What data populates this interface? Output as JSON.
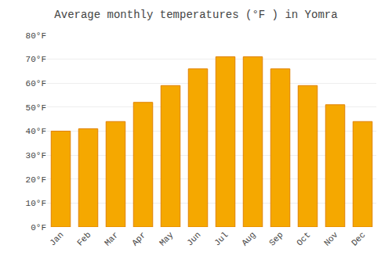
{
  "chart_data": {
    "type": "bar",
    "title": "Average monthly temperatures (°F ) in Yomra",
    "categories": [
      "Jan",
      "Feb",
      "Mar",
      "Apr",
      "May",
      "Jun",
      "Jul",
      "Aug",
      "Sep",
      "Oct",
      "Nov",
      "Dec"
    ],
    "values": [
      40,
      41,
      44,
      52,
      59,
      66,
      71,
      71,
      66,
      59,
      51,
      44
    ],
    "color": "#F5A800",
    "ylim": [
      0,
      80
    ],
    "yticks": [
      {
        "value": 0,
        "label": "0°F"
      },
      {
        "value": 10,
        "label": "10°F"
      },
      {
        "value": 20,
        "label": "20°F"
      },
      {
        "value": 30,
        "label": "30°F"
      },
      {
        "value": 40,
        "label": "40°F"
      },
      {
        "value": 50,
        "label": "50°F"
      },
      {
        "value": 60,
        "label": "60°F"
      },
      {
        "value": 70,
        "label": "70°F"
      },
      {
        "value": 80,
        "label": "80°F"
      }
    ],
    "grid": true
  }
}
